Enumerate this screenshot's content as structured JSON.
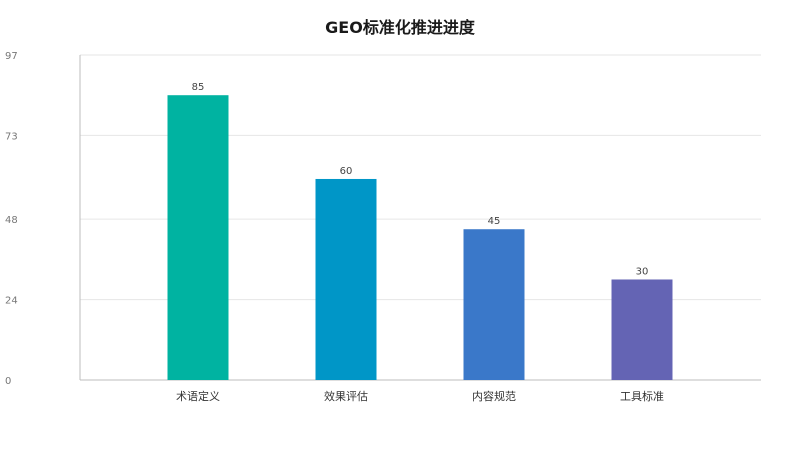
{
  "chart_data": {
    "type": "bar",
    "title": "GEO标准化推进进度",
    "xlabel": "",
    "ylabel": "",
    "categories": [
      "术语定义",
      "效果评估",
      "内容规范",
      "工具标准"
    ],
    "values": [
      85,
      60,
      45,
      30
    ],
    "colors": [
      "#00b3a1",
      "#0096c7",
      "#3a78c9",
      "#6464b4"
    ],
    "ylim": [
      0,
      97
    ],
    "yticks": [
      0,
      24,
      48,
      73,
      97
    ],
    "grid": true,
    "legend": "none"
  }
}
